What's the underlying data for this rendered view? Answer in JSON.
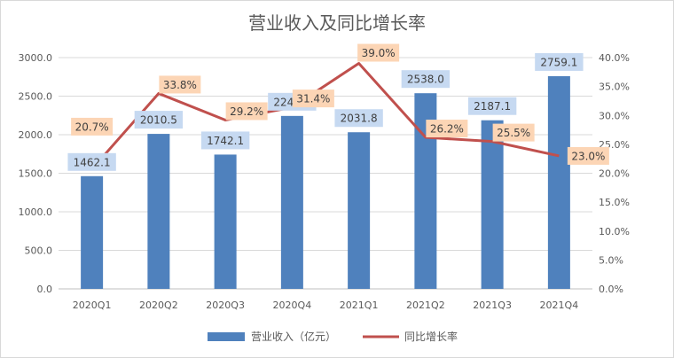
{
  "chart_data": {
    "type": "bar",
    "title": "营业收入及同比增长率",
    "categories": [
      "2020Q1",
      "2020Q2",
      "2020Q3",
      "2020Q4",
      "2021Q1",
      "2021Q2",
      "2021Q3",
      "2021Q4"
    ],
    "series": [
      {
        "name": "营业收入（亿元）",
        "type": "bar",
        "axis": "left",
        "color": "#4f81bd",
        "values": [
          1462.1,
          2010.5,
          1742.1,
          2243.3,
          2031.8,
          2538.0,
          2187.1,
          2759.1
        ],
        "labels": [
          "1462.1",
          "2010.5",
          "1742.1",
          "2243.3",
          "2031.8",
          "2538.0",
          "2187.1",
          "2759.1"
        ],
        "label_bg": "#c6d9f1"
      },
      {
        "name": "同比增长率",
        "type": "line",
        "axis": "right",
        "color": "#c0504d",
        "values": [
          20.7,
          33.8,
          29.2,
          31.4,
          39.0,
          26.2,
          25.5,
          23.0
        ],
        "labels": [
          "20.7%",
          "33.8%",
          "29.2%",
          "31.4%",
          "39.0%",
          "26.2%",
          "25.5%",
          "23.0%"
        ],
        "label_bg": "#fcd5b5"
      }
    ],
    "y_left": {
      "min": 0,
      "max": 3000,
      "ticks": [
        "0.0",
        "500.0",
        "1000.0",
        "1500.0",
        "2000.0",
        "2500.0",
        "3000.0"
      ]
    },
    "y_right": {
      "min": 0,
      "max": 40,
      "ticks": [
        "0.0%",
        "5.0%",
        "10.0%",
        "15.0%",
        "20.0%",
        "25.0%",
        "30.0%",
        "35.0%",
        "40.0%"
      ]
    },
    "grid": true,
    "legend": "bottom"
  }
}
